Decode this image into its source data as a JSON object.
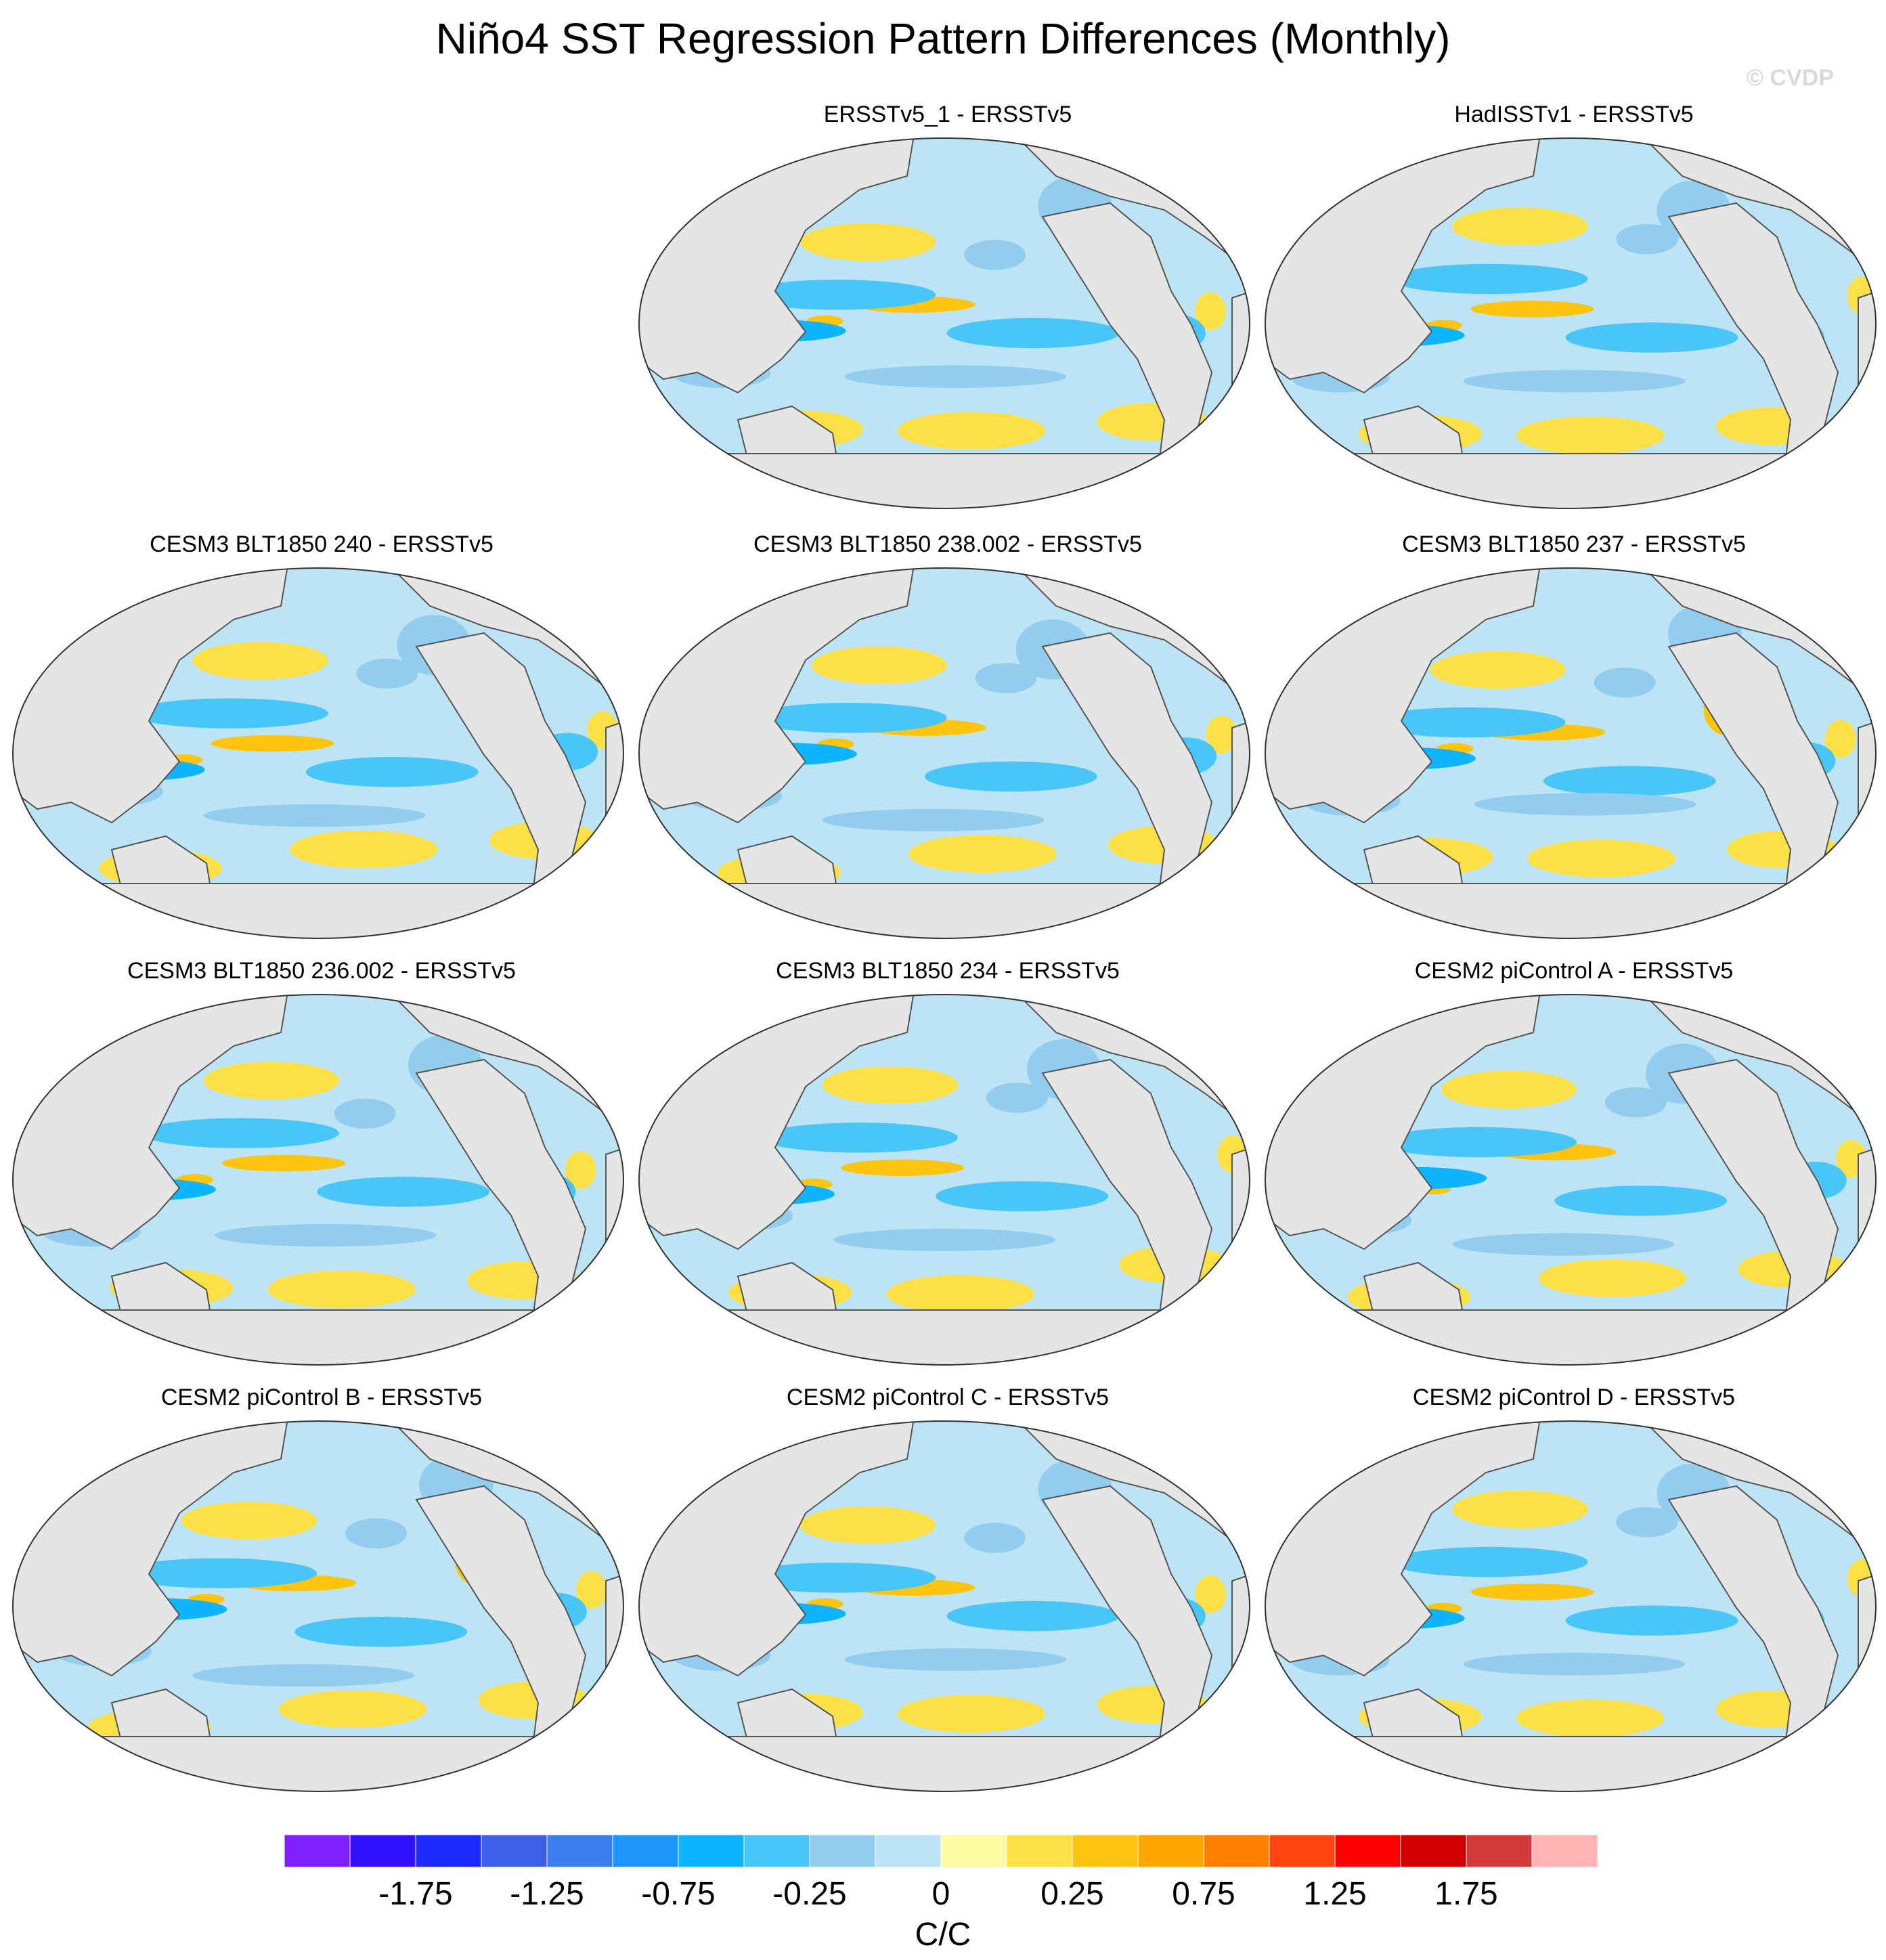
{
  "title": "Niño4 SST Regression Pattern Differences (Monthly)",
  "watermark": "© CVDP",
  "panels": [
    {
      "label": "ERSSTv5_1 - ERSSTv5"
    },
    {
      "label": "HadISSTv1 - ERSSTv5"
    },
    {
      "label": "CESM3 BLT1850 240 - ERSSTv5"
    },
    {
      "label": "CESM3 BLT1850 238.002 - ERSSTv5"
    },
    {
      "label": "CESM3 BLT1850 237 - ERSSTv5"
    },
    {
      "label": "CESM3 BLT1850 236.002 - ERSSTv5"
    },
    {
      "label": "CESM3 BLT1850 234 - ERSSTv5"
    },
    {
      "label": "CESM2 piControl A - ERSSTv5"
    },
    {
      "label": "CESM2 piControl B - ERSSTv5"
    },
    {
      "label": "CESM2 piControl C - ERSSTv5"
    },
    {
      "label": "CESM2 piControl D - ERSSTv5"
    }
  ],
  "colorbar": {
    "units": "C/C",
    "tick_labels": [
      "-1.75",
      "-1.25",
      "-0.75",
      "-0.25",
      "0",
      "0.25",
      "0.75",
      "1.25",
      "1.75"
    ],
    "colors": [
      "#7f1fff",
      "#3311ff",
      "#1f2aff",
      "#3d5ee6",
      "#3b7fee",
      "#1e96f9",
      "#0fb4ff",
      "#49c6f8",
      "#92ccee",
      "#bde4f5",
      "#fffaa3",
      "#fde046",
      "#ffc40f",
      "#ffa600",
      "#ff7f00",
      "#ff4512",
      "#ff0000",
      "#d30000",
      "#d43939",
      "#ffb3b3"
    ]
  },
  "colors": {
    "land": "#e5e5e5",
    "coast": "#555555",
    "ocean_base": "#bde4f5"
  }
}
